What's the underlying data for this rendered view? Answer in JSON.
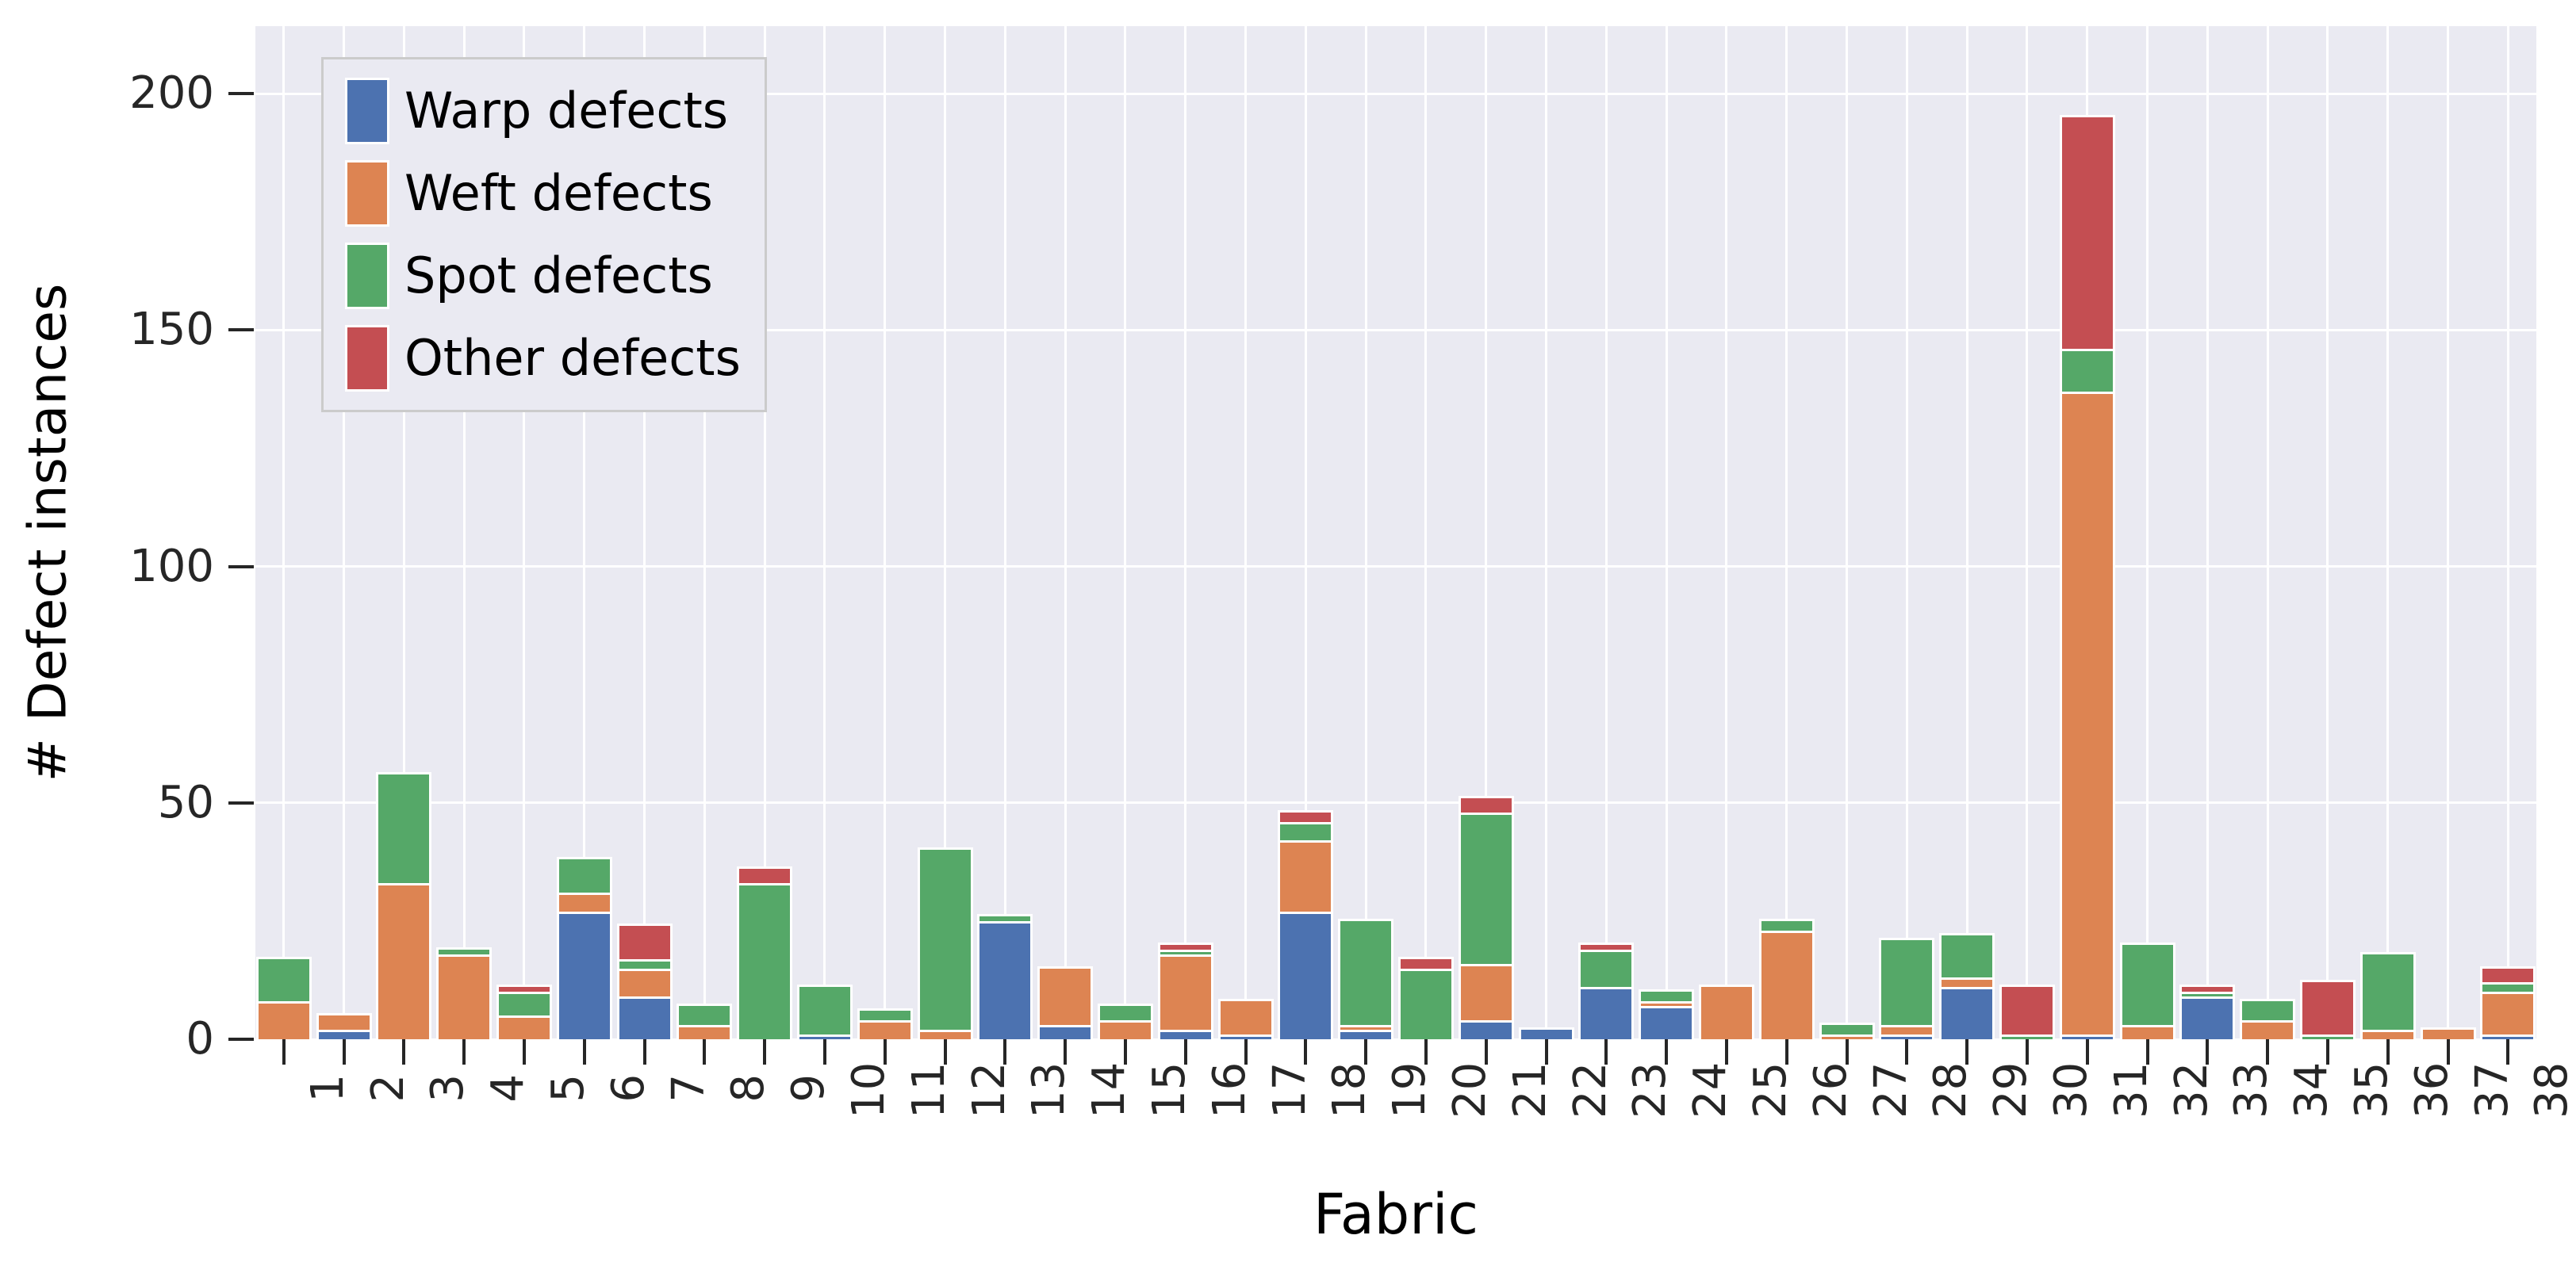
{
  "chart_data": {
    "type": "bar",
    "stacked": true,
    "title": "",
    "xlabel": "Fabric",
    "ylabel": "# Defect instances",
    "categories": [
      "1",
      "2",
      "3",
      "4",
      "5",
      "6",
      "7",
      "8",
      "9",
      "10",
      "11",
      "12",
      "13",
      "14",
      "15",
      "16",
      "17",
      "18",
      "19",
      "20",
      "21",
      "22",
      "23",
      "24",
      "25",
      "26",
      "27",
      "28",
      "29",
      "30",
      "31",
      "32",
      "33",
      "34",
      "35",
      "36",
      "37",
      "38"
    ],
    "series": [
      {
        "name": "Warp defects",
        "color": "#4c72b0",
        "values": [
          0,
          2,
          0,
          0,
          0,
          27,
          9,
          0,
          0,
          1,
          0,
          0,
          25,
          3,
          0,
          2,
          1,
          27,
          2,
          0,
          4,
          2,
          11,
          7,
          0,
          0,
          0,
          1,
          11,
          0,
          1,
          0,
          9,
          0,
          0,
          0,
          0,
          1
        ]
      },
      {
        "name": "Weft defects",
        "color": "#dd8452",
        "values": [
          8,
          3,
          33,
          18,
          5,
          4,
          6,
          3,
          0,
          0,
          4,
          2,
          0,
          12,
          4,
          16,
          7,
          15,
          1,
          0,
          12,
          0,
          0,
          1,
          11,
          23,
          1,
          2,
          2,
          0,
          136,
          3,
          0,
          4,
          0,
          2,
          2,
          9
        ]
      },
      {
        "name": "Spot defects",
        "color": "#55a868",
        "values": [
          9,
          0,
          23,
          1,
          5,
          7,
          2,
          4,
          33,
          10,
          2,
          38,
          1,
          0,
          3,
          1,
          0,
          4,
          22,
          15,
          32,
          0,
          8,
          2,
          0,
          2,
          2,
          18,
          9,
          1,
          9,
          17,
          1,
          4,
          1,
          16,
          0,
          2
        ]
      },
      {
        "name": "Other defects",
        "color": "#c44e52",
        "values": [
          0,
          0,
          0,
          0,
          1,
          0,
          7,
          0,
          3,
          0,
          0,
          0,
          0,
          0,
          0,
          1,
          0,
          2,
          0,
          2,
          3,
          0,
          1,
          0,
          0,
          0,
          0,
          0,
          0,
          10,
          49,
          0,
          1,
          0,
          11,
          0,
          0,
          3
        ]
      }
    ],
    "totals": [
      17,
      5,
      56,
      19,
      11,
      38,
      24,
      7,
      36,
      11,
      6,
      40,
      26,
      15,
      7,
      20,
      8,
      48,
      25,
      17,
      51,
      2,
      20,
      10,
      11,
      25,
      3,
      21,
      22,
      11,
      195,
      20,
      11,
      8,
      12,
      18,
      2,
      15
    ],
    "yticks": [
      0,
      50,
      100,
      150,
      200
    ],
    "ylim": [
      0,
      214
    ],
    "grid": true,
    "legend_position": "upper left",
    "plot_background": "#eaeaf2",
    "grid_color": "#ffffff",
    "tick_color": "#262626"
  }
}
